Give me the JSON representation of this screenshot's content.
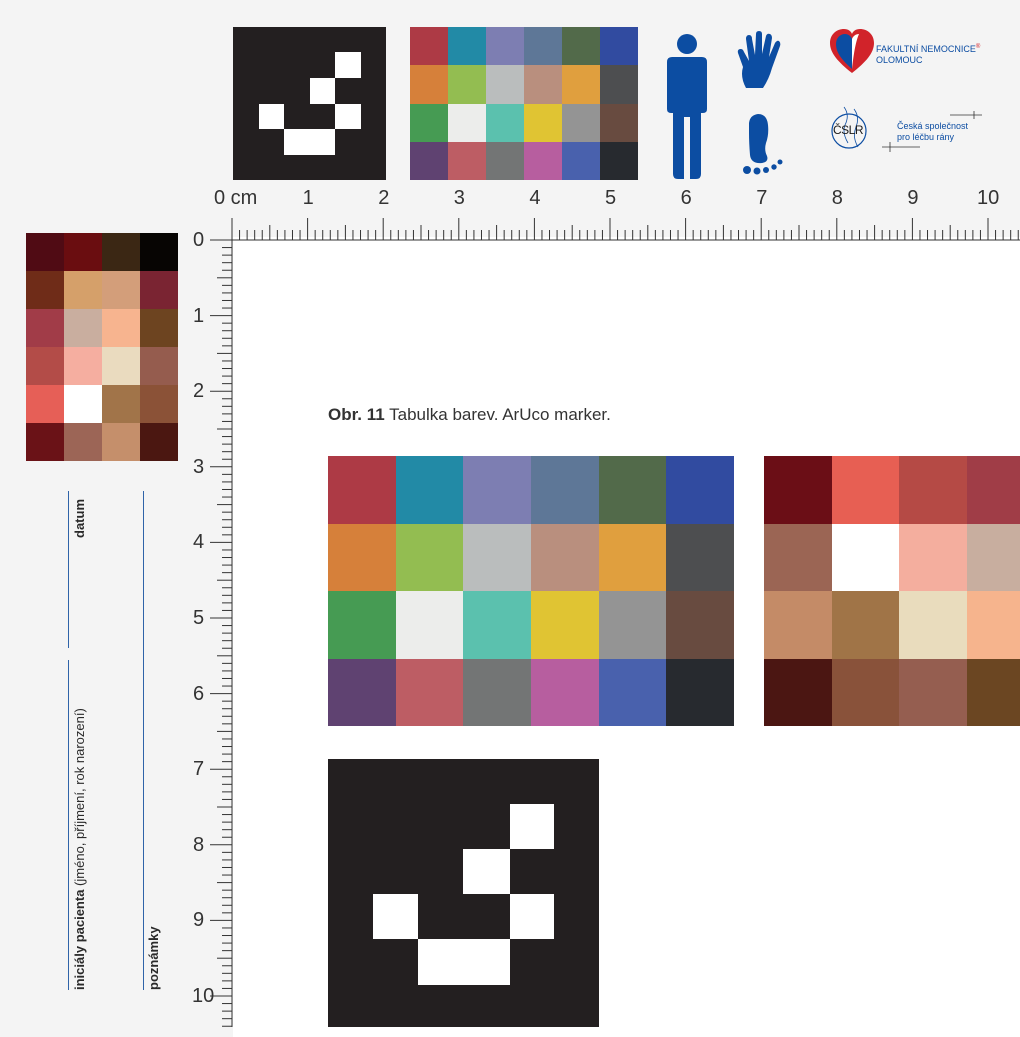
{
  "ruler": {
    "unit_label": "0 cm",
    "top_numbers": [
      "1",
      "2",
      "3",
      "4",
      "5",
      "6",
      "7",
      "8",
      "9",
      "10"
    ],
    "left_numbers": [
      "0",
      "1",
      "2",
      "3",
      "4",
      "5",
      "6",
      "7",
      "8",
      "9",
      "10"
    ]
  },
  "caption": {
    "label": "Obr. 11",
    "text": "Tabulka barev. ArUco marker."
  },
  "form": {
    "datum": "datum",
    "initials_bold": "iniciály pacienta",
    "initials_rest": "(jméno, příjmení, rok narození)",
    "notes": "poznámky"
  },
  "logos": {
    "fnol_line1": "FAKULTNÍ NEMOCNICE",
    "fnol_reg": "®",
    "fnol_line2": "OLOMOUC",
    "cslr_mark": "ČSLR",
    "cslr_line1": "Česká společnost",
    "cslr_line2": "pro léčbu rány"
  },
  "icons": [
    "person-icon",
    "hand-icon",
    "foot-icon",
    "heart-logo-icon",
    "cslr-logo-icon"
  ],
  "colors": {
    "accent": "#0c4da2",
    "chart_a": [
      "#ad3a45",
      "#228aa6",
      "#7d7eb2",
      "#5e7797",
      "#526a4a",
      "#314ba0",
      "#d6803a",
      "#93bd51",
      "#babdbd",
      "#b98f7e",
      "#e09f3e",
      "#4d4e50",
      "#469b53",
      "#ecedeb",
      "#5bc1ae",
      "#e0c433",
      "#949494",
      "#684b40",
      "#5f4271",
      "#bd5d64",
      "#737575",
      "#b75e9f",
      "#4961ad",
      "#272a2f"
    ],
    "chart_b": [
      "#6b0e16",
      "#e75f53",
      "#b54a45",
      "#a03d47",
      "#9b6554",
      "#ffffff",
      "#f4ae9e",
      "#c8ae9f",
      "#c48b67",
      "#a07447",
      "#e9dcbd",
      "#f6b48d",
      "#4b1612",
      "#89523a",
      "#955e50",
      "#6b4622"
    ],
    "chart_skin": [
      "#500b14",
      "#6a0d10",
      "#3b2714",
      "#070503",
      "#6f2c18",
      "#d5a06a",
      "#d39e7a",
      "#7a2432",
      "#a13c48",
      "#c9ae9f",
      "#f7b48f",
      "#6d4420",
      "#b34c48",
      "#f5aea0",
      "#eadbbf",
      "#955c4e",
      "#e65f57",
      "#ffffff",
      "#a17449",
      "#8b5237",
      "#6a1217",
      "#9c6556",
      "#c58f6b",
      "#4b1711"
    ]
  }
}
